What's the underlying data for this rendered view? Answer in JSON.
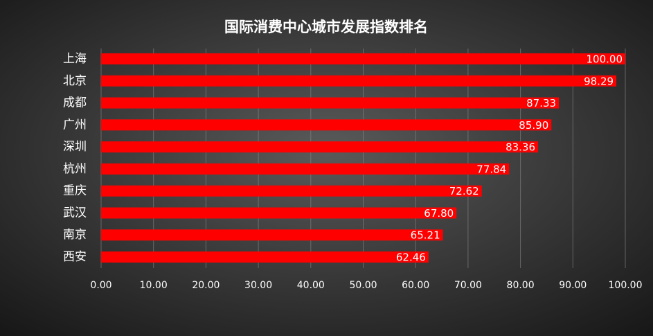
{
  "chart_data": {
    "type": "bar",
    "orientation": "horizontal",
    "title": "国际消费中心城市发展指数排名",
    "categories": [
      "上海",
      "北京",
      "成都",
      "广州",
      "深圳",
      "杭州",
      "重庆",
      "武汉",
      "南京",
      "西安"
    ],
    "values": [
      100,
      98.29,
      87.33,
      85.9,
      83.36,
      77.84,
      72.62,
      67.8,
      65.21,
      62.46
    ],
    "value_labels": [
      "100.00",
      "98.29",
      "87.33",
      "85.90",
      "83.36",
      "77.84",
      "72.62",
      "67.80",
      "65.21",
      "62.46"
    ],
    "color": "#ff0000",
    "xlim": [
      0,
      100
    ],
    "xticks": [
      {
        "value": 0,
        "label": "0.00"
      },
      {
        "value": 10,
        "label": "10.00"
      },
      {
        "value": 20,
        "label": "20.00"
      },
      {
        "value": 30,
        "label": "30.00"
      },
      {
        "value": 40,
        "label": "40.00"
      },
      {
        "value": 50,
        "label": "50.00"
      },
      {
        "value": 60,
        "label": "60.00"
      },
      {
        "value": 70,
        "label": "70.00"
      },
      {
        "value": 80,
        "label": "80.00"
      },
      {
        "value": 90,
        "label": "90.00"
      },
      {
        "value": 100,
        "label": "100.00"
      }
    ],
    "grid": true
  }
}
